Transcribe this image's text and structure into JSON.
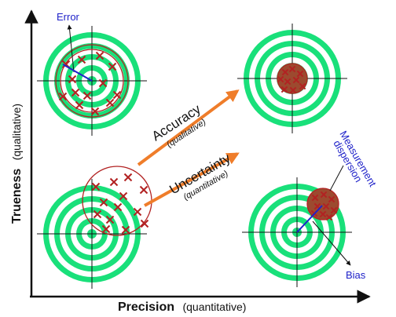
{
  "colors": {
    "ring_green": "#19e07a",
    "cross_red": "#b22222",
    "arrow_orange": "#ef7d2a",
    "label_blue": "#1f22c9",
    "ink": "#111111"
  },
  "labels": {
    "y_axis_bold": "Trueness",
    "y_axis_qual": "(qualitative)",
    "x_axis_bold": "Precision",
    "x_axis_qual": "(quantitative)",
    "error": "Error",
    "accuracy": "Accuracy",
    "accuracy_sub": "(qualitative)",
    "uncertainty": "Uncertainty",
    "uncertainty_sub": "(quantitative)",
    "measurement": "Measurement",
    "dispersion": "dispersion",
    "bias": "Bias"
  }
}
